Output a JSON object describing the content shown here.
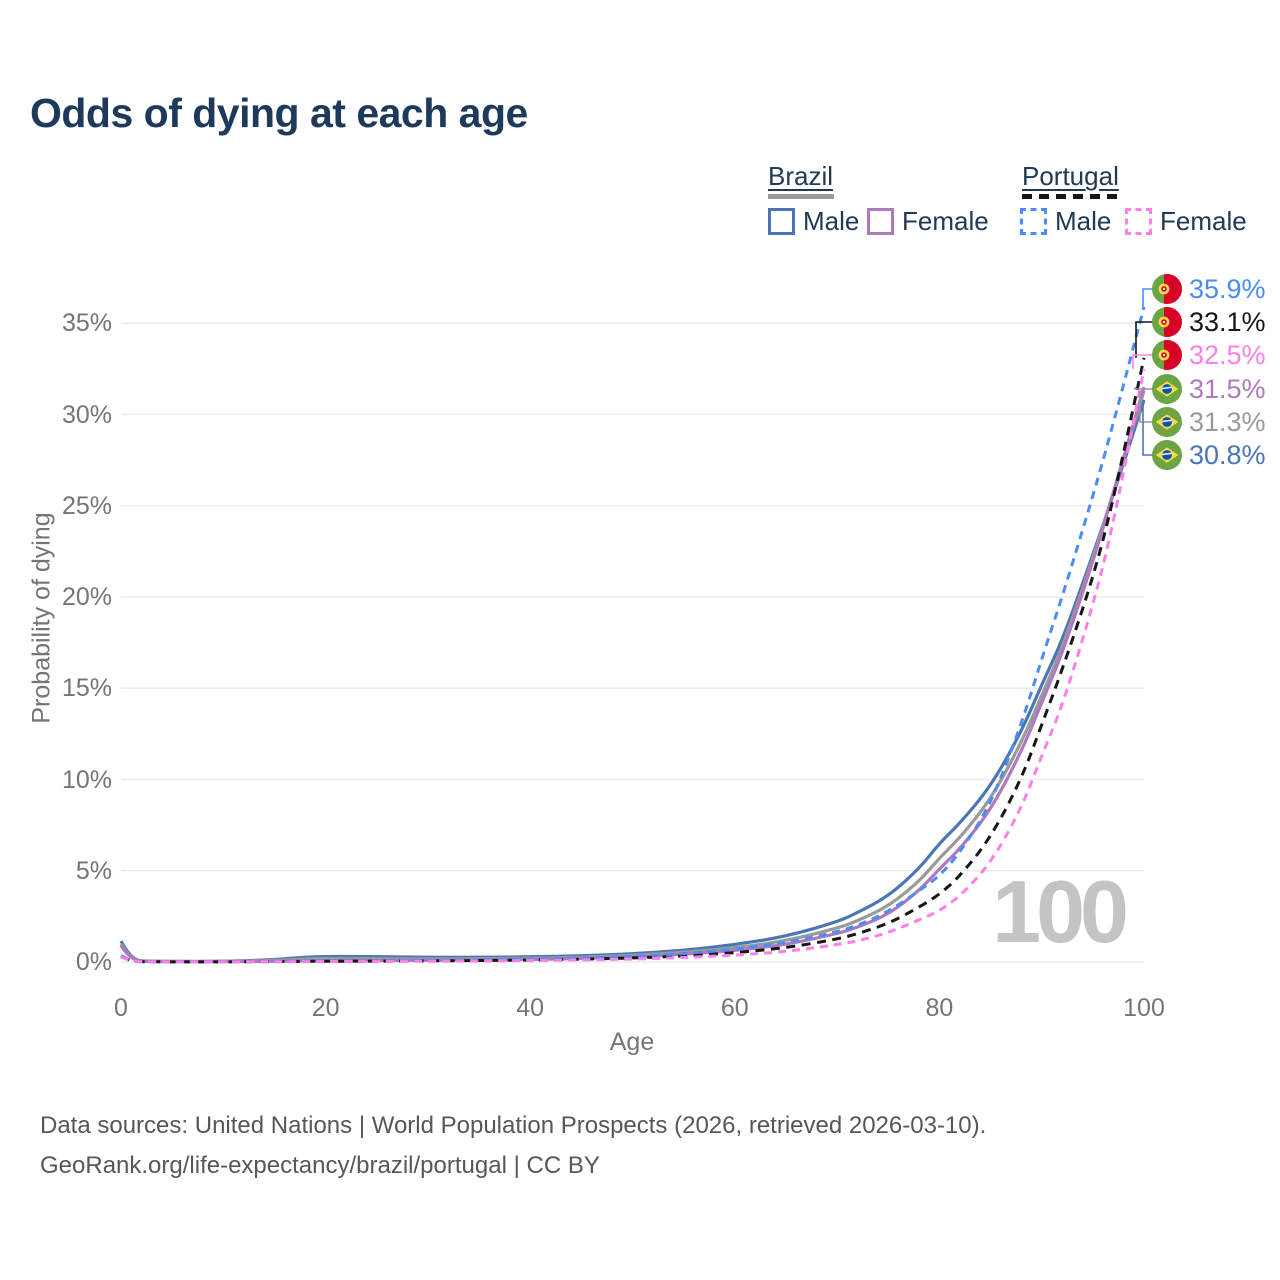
{
  "title": "Odds of dying at each age",
  "legend": {
    "groups": [
      {
        "label": "Brazil",
        "line_style": "solid",
        "line_color": "#9a9a9a",
        "items": [
          {
            "label": "Male",
            "color": "#4a77b4",
            "dashed": false
          },
          {
            "label": "Female",
            "color": "#af79bd",
            "dashed": false
          }
        ]
      },
      {
        "label": "Portugal",
        "line_style": "dashed",
        "line_color": "#161616",
        "items": [
          {
            "label": "Male",
            "color": "#4b8cf5",
            "dashed": true
          },
          {
            "label": "Female",
            "color": "#fb80e8",
            "dashed": true
          }
        ]
      }
    ]
  },
  "chart_data": {
    "type": "line",
    "title": "Odds of dying at each age",
    "xlabel": "Age",
    "ylabel": "Probability of dying",
    "xlim": [
      0,
      100
    ],
    "ylim_percent": [
      0,
      37.5
    ],
    "x_ticks": [
      0,
      20,
      40,
      60,
      80,
      100
    ],
    "y_tick_labels": [
      "0%",
      "5%",
      "10%",
      "15%",
      "20%",
      "25%",
      "30%",
      "35%"
    ],
    "y_tick_values": [
      0,
      5,
      10,
      15,
      20,
      25,
      30,
      35
    ],
    "grid": "horizontal-only",
    "watermark": "100",
    "ages": [
      0,
      1,
      3,
      5,
      10,
      15,
      18,
      20,
      23,
      25,
      30,
      35,
      40,
      45,
      50,
      55,
      60,
      65,
      70,
      72,
      75,
      78,
      80,
      82,
      85,
      88,
      90,
      92,
      95,
      97,
      100
    ],
    "series": [
      {
        "name": "Brazil Male",
        "country": "Brazil",
        "sex": "Male",
        "flag": "brazil",
        "color": "#4a77b4",
        "dashed": false,
        "end_label": "30.8%",
        "end_value": 30.8,
        "values": [
          1.15,
          0.08,
          0.04,
          0.03,
          0.03,
          0.12,
          0.27,
          0.3,
          0.3,
          0.29,
          0.26,
          0.26,
          0.28,
          0.33,
          0.45,
          0.63,
          0.95,
          1.4,
          2.2,
          2.7,
          3.6,
          5.1,
          6.5,
          7.6,
          9.6,
          12.6,
          15.2,
          17.6,
          22.3,
          25.6,
          30.8
        ]
      },
      {
        "name": "Brazil",
        "country": "Brazil",
        "sex": "Both",
        "flag": "brazil",
        "color": "#9a9a9a",
        "dashed": false,
        "end_label": "31.3%",
        "end_value": 31.3,
        "values": [
          1.0,
          0.07,
          0.035,
          0.025,
          0.025,
          0.08,
          0.17,
          0.19,
          0.19,
          0.18,
          0.17,
          0.18,
          0.2,
          0.25,
          0.36,
          0.52,
          0.78,
          1.15,
          1.85,
          2.25,
          3.05,
          4.4,
          5.7,
          6.8,
          8.9,
          12.0,
          14.6,
          17.2,
          22.1,
          25.7,
          31.3
        ]
      },
      {
        "name": "Brazil Female",
        "country": "Brazil",
        "sex": "Female",
        "flag": "brazil",
        "color": "#af79bd",
        "dashed": false,
        "end_label": "31.5%",
        "end_value": 31.5,
        "values": [
          0.9,
          0.06,
          0.03,
          0.02,
          0.02,
          0.04,
          0.06,
          0.07,
          0.08,
          0.08,
          0.09,
          0.11,
          0.14,
          0.19,
          0.28,
          0.42,
          0.63,
          0.95,
          1.55,
          1.9,
          2.6,
          3.9,
          5.1,
          6.2,
          8.3,
          11.5,
          14.2,
          16.9,
          21.9,
          25.7,
          31.5
        ]
      },
      {
        "name": "Portugal",
        "country": "Portugal",
        "sex": "Both",
        "flag": "portugal",
        "color": "#161616",
        "dashed": true,
        "end_label": "33.1%",
        "end_value": 33.1,
        "values": [
          0.3,
          0.025,
          0.012,
          0.008,
          0.008,
          0.02,
          0.035,
          0.04,
          0.045,
          0.05,
          0.06,
          0.08,
          0.11,
          0.15,
          0.22,
          0.33,
          0.5,
          0.78,
          1.25,
          1.55,
          2.1,
          3.0,
          3.7,
          4.7,
          6.8,
          10.0,
          13.0,
          16.0,
          21.0,
          25.3,
          33.1
        ]
      },
      {
        "name": "Portugal Male",
        "country": "Portugal",
        "sex": "Male",
        "flag": "portugal",
        "color": "#4b8cf5",
        "dashed": true,
        "end_label": "35.9%",
        "end_value": 35.9,
        "values": [
          0.35,
          0.03,
          0.015,
          0.01,
          0.01,
          0.03,
          0.05,
          0.06,
          0.07,
          0.07,
          0.08,
          0.1,
          0.14,
          0.2,
          0.3,
          0.45,
          0.7,
          1.05,
          1.65,
          2.0,
          2.75,
          3.9,
          4.7,
          6.0,
          8.6,
          13.0,
          16.6,
          20.0,
          25.5,
          29.5,
          35.9
        ]
      },
      {
        "name": "Portugal Female",
        "country": "Portugal",
        "sex": "Female",
        "flag": "portugal",
        "color": "#fb80e8",
        "dashed": true,
        "end_label": "32.5%",
        "end_value": 32.5,
        "values": [
          0.28,
          0.02,
          0.01,
          0.007,
          0.007,
          0.015,
          0.02,
          0.025,
          0.03,
          0.035,
          0.04,
          0.055,
          0.08,
          0.11,
          0.16,
          0.24,
          0.37,
          0.57,
          0.95,
          1.15,
          1.6,
          2.3,
          2.8,
          3.6,
          5.4,
          8.4,
          11.3,
          14.0,
          19.5,
          24.0,
          32.5
        ]
      }
    ],
    "end_labels_top_to_bottom": [
      "35.9%",
      "33.1%",
      "32.5%",
      "31.5%",
      "31.3%",
      "30.8%"
    ]
  },
  "footer": {
    "line1": "Data sources: United Nations | World Population Prospects (2026, retrieved 2026-03-10).",
    "line2": "GeoRank.org/life-expectancy/brazil/portugal | CC BY"
  }
}
